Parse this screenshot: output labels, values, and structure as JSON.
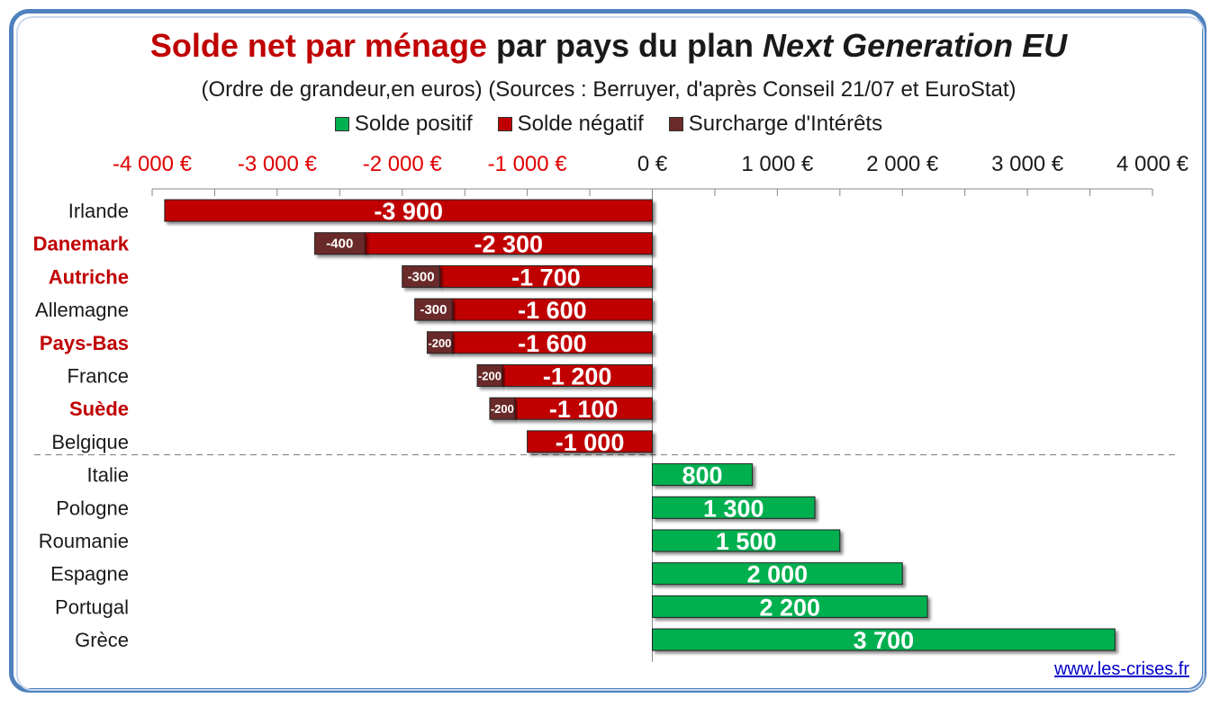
{
  "title": {
    "part1": "Solde net par ménage",
    "part2": " par pays du plan ",
    "part3": "Next Generation EU"
  },
  "subtitle": "(Ordre de grandeur,en euros) (Sources : Berruyer, d'après Conseil 21/07 et EuroStat)",
  "source_link": "www.les-crises.fr",
  "colors": {
    "positive": "#00b050",
    "negative": "#c00000",
    "interest": "#6b2a2a",
    "negative_tick": "#e00000",
    "highlight_label": "#c00000"
  },
  "chart_data": {
    "type": "bar",
    "orientation": "horizontal",
    "stacked": true,
    "xlim": [
      -4000,
      4000
    ],
    "x_ticks": [
      -4000,
      -3000,
      -2000,
      -1000,
      0,
      1000,
      2000,
      3000,
      4000
    ],
    "x_tick_labels": [
      "-4 000 €",
      "-3 000 €",
      "-2 000 €",
      "-1 000 €",
      "0 €",
      "1 000 €",
      "2 000 €",
      "3 000 €",
      "4 000 €"
    ],
    "axis_position": "top",
    "legend": [
      "Solde positif",
      "Solde négatif",
      "Surcharge d'Intérêts"
    ],
    "legend_position": "top",
    "categories": [
      "Irlande",
      "Danemark",
      "Autriche",
      "Allemagne",
      "Pays-Bas",
      "France",
      "Suède",
      "Belgique",
      "Italie",
      "Pologne",
      "Roumanie",
      "Espagne",
      "Portugal",
      "Grèce"
    ],
    "highlighted_categories": [
      "Danemark",
      "Autriche",
      "Pays-Bas",
      "Suède"
    ],
    "series": [
      {
        "name": "Solde positif",
        "values": [
          0,
          0,
          0,
          0,
          0,
          0,
          0,
          0,
          800,
          1300,
          1500,
          2000,
          2200,
          3700
        ],
        "labels": [
          "",
          "",
          "",
          "",
          "",
          "",
          "",
          "",
          "800",
          "1 300",
          "1 500",
          "2 000",
          "2 200",
          "3 700"
        ]
      },
      {
        "name": "Solde négatif",
        "values": [
          -3900,
          -2300,
          -1700,
          -1600,
          -1600,
          -1200,
          -1100,
          -1000,
          0,
          0,
          0,
          0,
          0,
          0
        ],
        "labels": [
          "-3 900",
          "-2 300",
          "-1 700",
          "-1 600",
          "-1 600",
          "-1 200",
          "-1 100",
          "-1 000",
          "",
          "",
          "",
          "",
          "",
          ""
        ]
      },
      {
        "name": "Surcharge d'Intérêts",
        "values": [
          0,
          -400,
          -300,
          -300,
          -200,
          -200,
          -200,
          0,
          0,
          0,
          0,
          0,
          0,
          0
        ],
        "labels": [
          "",
          "-400",
          "-300",
          "-300",
          "-200",
          "-200",
          "-200",
          "",
          "",
          "",
          "",
          "",
          "",
          ""
        ]
      }
    ],
    "separator_after_index": 7
  }
}
